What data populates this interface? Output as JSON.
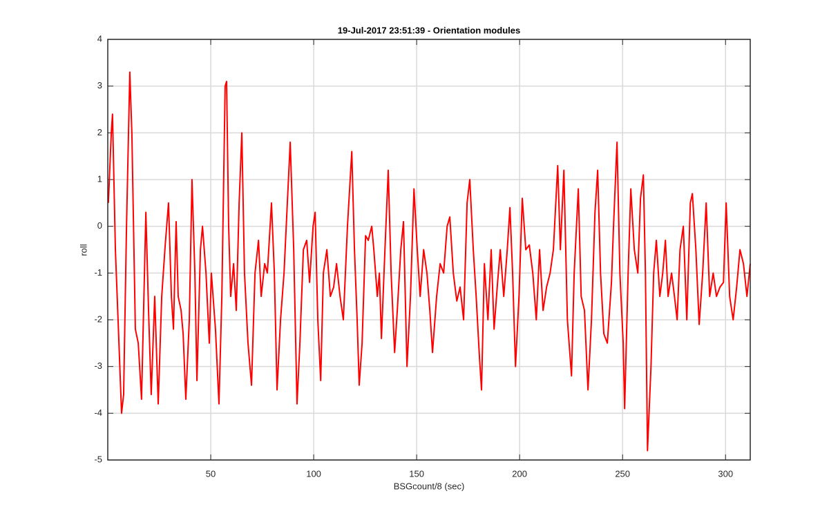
{
  "chart_data": {
    "type": "line",
    "title": "19-Jul-2017 23:51:39 - Orientation modules",
    "xlabel": "BSGcount/8 (sec)",
    "ylabel": "roll",
    "color": "#ff0000",
    "grid": true,
    "xlim": [
      0,
      312
    ],
    "ylim": [
      -5,
      4
    ],
    "xticks": [
      50,
      100,
      150,
      200,
      250,
      300
    ],
    "yticks": [
      -5,
      -4,
      -3,
      -2,
      -1,
      0,
      1,
      2,
      3,
      4
    ],
    "x": [
      0.3,
      1.7,
      2.3,
      3.7,
      5.0,
      6.7,
      7.7,
      9.1,
      10.7,
      11.7,
      13.4,
      14.8,
      16.4,
      18.5,
      19.8,
      21.1,
      22.8,
      24.5,
      26.2,
      27.9,
      29.5,
      30.9,
      31.9,
      33.2,
      34.2,
      35.6,
      36.6,
      37.9,
      39.6,
      40.9,
      42.3,
      43.3,
      45.0,
      46.0,
      47.7,
      49.3,
      50.3,
      52.3,
      54.0,
      55.4,
      57.0,
      57.7,
      58.7,
      59.7,
      61.1,
      62.4,
      63.8,
      65.1,
      66.4,
      68.1,
      69.8,
      71.5,
      73.2,
      74.5,
      76.2,
      77.5,
      79.5,
      80.9,
      82.2,
      83.9,
      85.6,
      87.2,
      88.6,
      90.3,
      91.9,
      93.3,
      95.0,
      96.6,
      98.0,
      99.7,
      100.7,
      102.0,
      103.4,
      104.7,
      106.4,
      108.1,
      109.7,
      111.1,
      112.8,
      114.4,
      116.4,
      118.5,
      119.8,
      121.1,
      122.1,
      123.5,
      125.2,
      126.5,
      128.2,
      129.2,
      130.9,
      131.9,
      132.9,
      134.6,
      136.2,
      137.6,
      139.3,
      140.6,
      142.3,
      143.6,
      145.3,
      147.0,
      148.7,
      150.3,
      151.7,
      153.4,
      155.0,
      156.4,
      157.7,
      159.7,
      161.4,
      163.1,
      164.8,
      166.1,
      167.8,
      169.5,
      171.1,
      172.8,
      174.5,
      175.8,
      177.5,
      178.9,
      180.5,
      181.5,
      182.9,
      184.6,
      186.2,
      187.6,
      189.3,
      190.6,
      192.3,
      194.0,
      195.3,
      196.6,
      198.0,
      199.7,
      201.3,
      203.0,
      204.7,
      206.4,
      208.1,
      209.7,
      211.4,
      213.1,
      214.8,
      216.4,
      218.5,
      219.8,
      221.5,
      223.2,
      225.2,
      226.5,
      228.5,
      229.9,
      231.5,
      233.2,
      234.9,
      236.6,
      237.9,
      239.3,
      240.9,
      242.6,
      244.6,
      245.6,
      247.3,
      248.7,
      250.3,
      251.0,
      252.7,
      254.0,
      255.7,
      257.4,
      258.7,
      260.1,
      261.1,
      262.1,
      263.8,
      265.1,
      266.4,
      268.1,
      269.5,
      270.8,
      272.1,
      273.8,
      275.2,
      276.5,
      277.9,
      279.5,
      281.2,
      282.9,
      283.9,
      285.6,
      287.2,
      288.9,
      290.6,
      292.3,
      294.0,
      295.6,
      297.3,
      299.0,
      300.3,
      302.0,
      303.7,
      305.4,
      307.0,
      308.7,
      310.4,
      312
    ],
    "values": [
      0.5,
      2.0,
      2.4,
      -0.5,
      -2,
      -4.0,
      -3.6,
      0,
      3.3,
      2,
      -2.2,
      -2.5,
      -3.7,
      0.3,
      -1.8,
      -3.6,
      -1.5,
      -3.8,
      -1.5,
      -0.4,
      0.5,
      -1.5,
      -2.2,
      0.1,
      -1.5,
      -1.8,
      -2.3,
      -3.7,
      -2,
      1.0,
      -1,
      -3.3,
      -0.5,
      0,
      -1,
      -2.5,
      -1.0,
      -2.2,
      -3.8,
      -1.5,
      3.0,
      3.1,
      0,
      -1.5,
      -0.8,
      -1.8,
      0.5,
      2.0,
      -1,
      -2.5,
      -3.4,
      -1,
      -0.3,
      -1.5,
      -0.8,
      -1,
      0.5,
      -1,
      -3.5,
      -2,
      -1,
      0.5,
      1.8,
      -0.5,
      -3.8,
      -2.5,
      -0.5,
      -0.3,
      -1.2,
      0,
      0.3,
      -2,
      -3.3,
      -1,
      -0.5,
      -1.5,
      -1.3,
      -0.8,
      -1.5,
      -2,
      0,
      1.6,
      -0.5,
      -2,
      -3.4,
      -2.5,
      -0.2,
      -0.3,
      0,
      -0.5,
      -1.5,
      -1,
      -2.4,
      -0.5,
      1.2,
      -1,
      -2.7,
      -1.8,
      -0.5,
      0.1,
      -3.0,
      -1.5,
      0.8,
      -0.5,
      -1.5,
      -0.5,
      -1,
      -1.8,
      -2.7,
      -1.5,
      -0.8,
      -1,
      0,
      0.2,
      -1,
      -1.6,
      -1.3,
      -2,
      0.5,
      1.0,
      -0.5,
      -1.5,
      -2.8,
      -3.5,
      -0.8,
      -2,
      -0.5,
      -2.2,
      -1.2,
      -0.5,
      -1.5,
      -0.5,
      0.4,
      -1,
      -3,
      -1.5,
      0.6,
      -0.5,
      -0.4,
      -1,
      -2,
      -0.5,
      -1.8,
      -1.3,
      -1,
      -0.5,
      1.3,
      -0.5,
      1.2,
      -2,
      -3.2,
      -1,
      0.8,
      -1.5,
      -1.8,
      -3.5,
      -2,
      0.3,
      1.2,
      -1,
      -2.3,
      -2.5,
      -1.2,
      0,
      1.8,
      -1,
      -2.5,
      -3.9,
      -1,
      0.8,
      -0.5,
      -1,
      0.6,
      1.1,
      -1,
      -4.8,
      -3,
      -1,
      -0.3,
      -1.5,
      -1,
      -0.3,
      -1.5,
      -1,
      -1.5,
      -2,
      -0.5,
      0,
      -2,
      0.5,
      0.7,
      -0.5,
      -2.1,
      -1,
      0.5,
      -1.5,
      -1,
      -1.5,
      -1.3,
      -1.2,
      0.5,
      -1.5,
      -2,
      -1.3,
      -0.5,
      -0.8,
      -1.5,
      -0.8
    ]
  }
}
